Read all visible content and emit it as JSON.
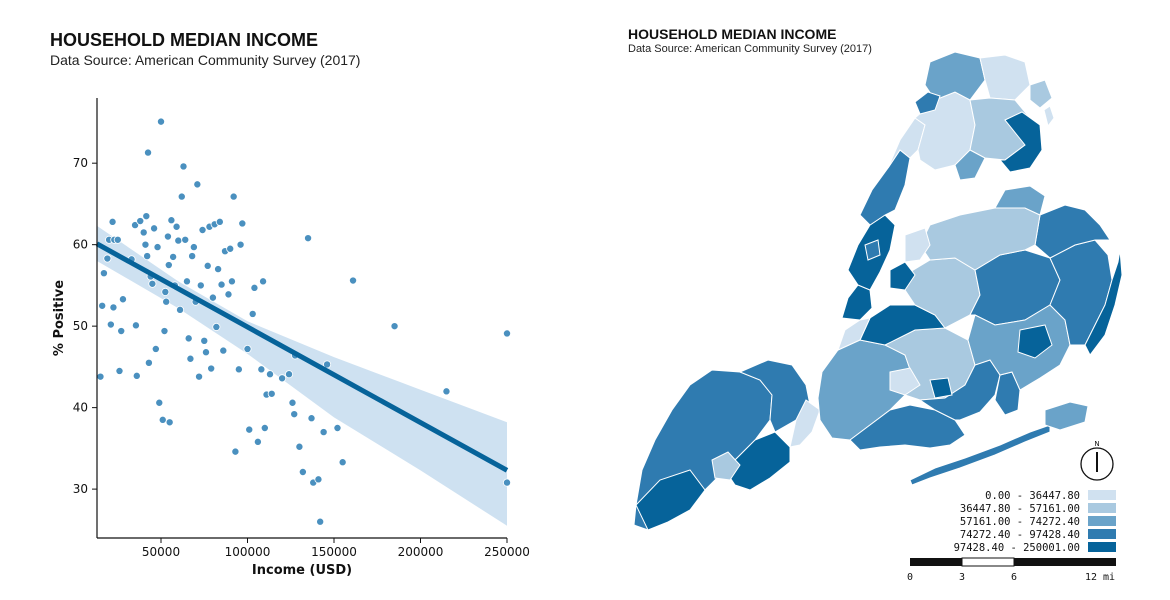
{
  "left_panel": {
    "title": "HOUSEHOLD MEDIAN INCOME",
    "subtitle": "Data Source:  American Community Survey (2017)"
  },
  "right_panel": {
    "title": "HOUSEHOLD MEDIAN INCOME",
    "subtitle": "Data Source:  American Community Survey (2017)",
    "north_label": "N",
    "legend": [
      {
        "label": "0.00 - 36447.80",
        "color": "#d0e1f0"
      },
      {
        "label": "36447.80 - 57161.00",
        "color": "#a9c9e0"
      },
      {
        "label": "57161.00 - 74272.40",
        "color": "#6aa3c9"
      },
      {
        "label": "74272.40 - 97428.40",
        "color": "#2f7bb0"
      },
      {
        "label": "97428.40 - 250001.00",
        "color": "#06639a"
      }
    ],
    "scalebar": {
      "ticks": [
        "0",
        "3",
        "6",
        "12 mi"
      ]
    }
  },
  "chart_data": [
    {
      "type": "scatter",
      "title": "HOUSEHOLD MEDIAN INCOME",
      "subtitle": "Data Source:  American Community Survey (2017)",
      "xlabel": "Income (USD)",
      "ylabel": "% Positive",
      "xlim": [
        13000,
        250000
      ],
      "ylim": [
        24,
        78
      ],
      "xticks": [
        50000,
        100000,
        150000,
        200000,
        250000
      ],
      "yticks": [
        30,
        40,
        50,
        60,
        70
      ],
      "grid": false,
      "point_color": "#4a90bf",
      "line_color": "#06639a",
      "ci_color": "#c6dcee",
      "regression": {
        "x": [
          13000,
          250000
        ],
        "y": [
          60.1,
          32.3
        ]
      },
      "ci_upper": {
        "x": [
          13000,
          60000,
          100000,
          150000,
          200000,
          250000
        ],
        "y": [
          62.3,
          55.5,
          50.6,
          46.2,
          42.2,
          38.2
        ]
      },
      "ci_lower": {
        "x": [
          13000,
          60000,
          100000,
          150000,
          200000,
          250000
        ],
        "y": [
          58.0,
          52.2,
          46.6,
          38.8,
          32.3,
          25.5
        ]
      },
      "points": [
        {
          "x": 15000,
          "y": 43.8
        },
        {
          "x": 16000,
          "y": 52.5
        },
        {
          "x": 17000,
          "y": 56.5
        },
        {
          "x": 19000,
          "y": 58.3
        },
        {
          "x": 20000,
          "y": 60.6
        },
        {
          "x": 21000,
          "y": 50.2
        },
        {
          "x": 22000,
          "y": 62.8
        },
        {
          "x": 22500,
          "y": 52.3
        },
        {
          "x": 23000,
          "y": 60.6
        },
        {
          "x": 25000,
          "y": 60.6
        },
        {
          "x": 26000,
          "y": 44.5
        },
        {
          "x": 27000,
          "y": 49.4
        },
        {
          "x": 28000,
          "y": 53.3
        },
        {
          "x": 33000,
          "y": 58.2
        },
        {
          "x": 35000,
          "y": 62.4
        },
        {
          "x": 35500,
          "y": 50.1
        },
        {
          "x": 36000,
          "y": 43.9
        },
        {
          "x": 38000,
          "y": 62.9
        },
        {
          "x": 40000,
          "y": 61.5
        },
        {
          "x": 41000,
          "y": 60.0
        },
        {
          "x": 41500,
          "y": 63.5
        },
        {
          "x": 42000,
          "y": 58.6
        },
        {
          "x": 42500,
          "y": 71.3
        },
        {
          "x": 43000,
          "y": 45.5
        },
        {
          "x": 44000,
          "y": 56.1
        },
        {
          "x": 45000,
          "y": 55.2
        },
        {
          "x": 46000,
          "y": 62.0
        },
        {
          "x": 47000,
          "y": 47.2
        },
        {
          "x": 48000,
          "y": 59.7
        },
        {
          "x": 49000,
          "y": 40.6
        },
        {
          "x": 50000,
          "y": 75.1
        },
        {
          "x": 51000,
          "y": 38.5
        },
        {
          "x": 52000,
          "y": 49.4
        },
        {
          "x": 52500,
          "y": 54.2
        },
        {
          "x": 53000,
          "y": 53.0
        },
        {
          "x": 54000,
          "y": 61.0
        },
        {
          "x": 54500,
          "y": 57.5
        },
        {
          "x": 55000,
          "y": 38.2
        },
        {
          "x": 56000,
          "y": 63.0
        },
        {
          "x": 57000,
          "y": 58.5
        },
        {
          "x": 58000,
          "y": 55.0
        },
        {
          "x": 59000,
          "y": 62.2
        },
        {
          "x": 60000,
          "y": 60.5
        },
        {
          "x": 61000,
          "y": 52.0
        },
        {
          "x": 62000,
          "y": 65.9
        },
        {
          "x": 63000,
          "y": 69.6
        },
        {
          "x": 64000,
          "y": 60.6
        },
        {
          "x": 65000,
          "y": 55.5
        },
        {
          "x": 66000,
          "y": 48.5
        },
        {
          "x": 67000,
          "y": 46.0
        },
        {
          "x": 68000,
          "y": 58.6
        },
        {
          "x": 69000,
          "y": 59.7
        },
        {
          "x": 70000,
          "y": 53.0
        },
        {
          "x": 71000,
          "y": 67.4
        },
        {
          "x": 72000,
          "y": 43.8
        },
        {
          "x": 73000,
          "y": 55.0
        },
        {
          "x": 74000,
          "y": 61.8
        },
        {
          "x": 75000,
          "y": 48.2
        },
        {
          "x": 76000,
          "y": 46.8
        },
        {
          "x": 77000,
          "y": 57.4
        },
        {
          "x": 78000,
          "y": 62.2
        },
        {
          "x": 79000,
          "y": 44.8
        },
        {
          "x": 80000,
          "y": 53.5
        },
        {
          "x": 81000,
          "y": 62.5
        },
        {
          "x": 82000,
          "y": 49.9
        },
        {
          "x": 83000,
          "y": 57.0
        },
        {
          "x": 84000,
          "y": 62.8
        },
        {
          "x": 85000,
          "y": 55.1
        },
        {
          "x": 86000,
          "y": 47.0
        },
        {
          "x": 87000,
          "y": 59.2
        },
        {
          "x": 89000,
          "y": 53.9
        },
        {
          "x": 90000,
          "y": 59.5
        },
        {
          "x": 91000,
          "y": 55.5
        },
        {
          "x": 92000,
          "y": 65.9
        },
        {
          "x": 93000,
          "y": 34.6
        },
        {
          "x": 95000,
          "y": 44.7
        },
        {
          "x": 96000,
          "y": 60.0
        },
        {
          "x": 97000,
          "y": 62.6
        },
        {
          "x": 100000,
          "y": 47.2
        },
        {
          "x": 101000,
          "y": 37.3
        },
        {
          "x": 103000,
          "y": 51.5
        },
        {
          "x": 104000,
          "y": 54.7
        },
        {
          "x": 106000,
          "y": 35.8
        },
        {
          "x": 108000,
          "y": 44.7
        },
        {
          "x": 109000,
          "y": 55.5
        },
        {
          "x": 110000,
          "y": 37.5
        },
        {
          "x": 111000,
          "y": 41.6
        },
        {
          "x": 113000,
          "y": 44.1
        },
        {
          "x": 114000,
          "y": 41.7
        },
        {
          "x": 120000,
          "y": 43.6
        },
        {
          "x": 124000,
          "y": 44.1
        },
        {
          "x": 126000,
          "y": 40.6
        },
        {
          "x": 127000,
          "y": 39.2
        },
        {
          "x": 127500,
          "y": 46.4
        },
        {
          "x": 130000,
          "y": 35.2
        },
        {
          "x": 132000,
          "y": 32.1
        },
        {
          "x": 135000,
          "y": 60.8
        },
        {
          "x": 137000,
          "y": 38.7
        },
        {
          "x": 138000,
          "y": 30.8
        },
        {
          "x": 141000,
          "y": 31.2
        },
        {
          "x": 142000,
          "y": 26.0
        },
        {
          "x": 144000,
          "y": 37.0
        },
        {
          "x": 146000,
          "y": 45.3
        },
        {
          "x": 152000,
          "y": 37.5
        },
        {
          "x": 155000,
          "y": 33.3
        },
        {
          "x": 161000,
          "y": 55.6
        },
        {
          "x": 185000,
          "y": 50.0
        },
        {
          "x": 215000,
          "y": 42.0
        },
        {
          "x": 250000,
          "y": 49.1
        },
        {
          "x": 250000,
          "y": 30.8
        }
      ]
    }
  ]
}
